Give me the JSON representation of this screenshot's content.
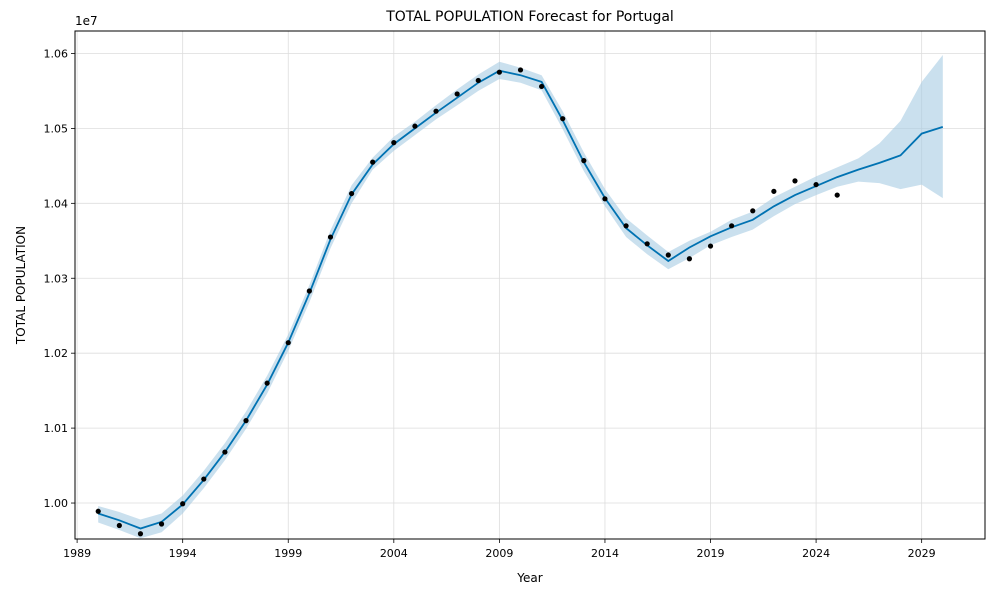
{
  "chart_data": {
    "type": "line",
    "title": "TOTAL POPULATION Forecast for Portugal",
    "xlabel": "Year",
    "ylabel": "TOTAL POPULATION",
    "y_offset_label": "1e7",
    "xlim": [
      1988.9,
      2032.0
    ],
    "ylim": [
      9952000,
      10630000
    ],
    "x_ticks": [
      1989,
      1994,
      1999,
      2004,
      2009,
      2014,
      2019,
      2024,
      2029
    ],
    "y_ticks": [
      10000000,
      10100000,
      10200000,
      10300000,
      10400000,
      10500000,
      10600000
    ],
    "y_tick_labels": [
      "1.00",
      "1.01",
      "1.02",
      "1.03",
      "1.04",
      "1.05",
      "1.06"
    ],
    "grid": true,
    "colors": {
      "forecast": "#0072B2",
      "interval": "#a6cbe3",
      "actual": "#000000"
    },
    "forecast": {
      "x": [
        1990,
        1991,
        1992,
        1993,
        1994,
        1995,
        1996,
        1997,
        1998,
        1999,
        2000,
        2001,
        2002,
        2003,
        2004,
        2005,
        2006,
        2007,
        2008,
        2009,
        2010,
        2011,
        2012,
        2013,
        2014,
        2015,
        2016,
        2017,
        2018,
        2019,
        2020,
        2021,
        2022,
        2023,
        2024,
        2025,
        2026,
        2027,
        2028,
        2029,
        2030
      ],
      "yhat": [
        9986000,
        9977000,
        9966000,
        9975000,
        9998000,
        10031000,
        10068000,
        10110000,
        10158000,
        10214000,
        10280000,
        10352000,
        10412000,
        10452000,
        10479000,
        10500000,
        10521000,
        10541000,
        10561000,
        10577000,
        10571000,
        10562000,
        10511000,
        10455000,
        10407000,
        10367000,
        10344000,
        10323000,
        10341000,
        10356000,
        10368000,
        10378000,
        10396000,
        10411000,
        10423000,
        10435000,
        10445000,
        10454000,
        10464000,
        10493000,
        10502000
      ],
      "lower": [
        9974000,
        9964000,
        9953000,
        9961000,
        9986000,
        10020000,
        10057000,
        10099000,
        10146000,
        10203000,
        10268000,
        10340000,
        10400000,
        10445000,
        10470000,
        10491000,
        10512000,
        10531000,
        10550000,
        10566000,
        10561000,
        10551000,
        10499000,
        10443000,
        10396000,
        10355000,
        10332000,
        10312000,
        10327000,
        10344000,
        10355000,
        10365000,
        10383000,
        10399000,
        10411000,
        10422000,
        10429000,
        10427000,
        10419000,
        10425000,
        10407000
      ],
      "upper": [
        9996000,
        9988000,
        9978000,
        9986000,
        10010000,
        10043000,
        10080000,
        10122000,
        10170000,
        10225000,
        10291000,
        10364000,
        10424000,
        10461000,
        10489000,
        10509000,
        10531000,
        10552000,
        10572000,
        10589000,
        10581000,
        10571000,
        10523000,
        10468000,
        10419000,
        10380000,
        10357000,
        10335000,
        10350000,
        10362000,
        10378000,
        10389000,
        10408000,
        10422000,
        10436000,
        10448000,
        10460000,
        10480000,
        10510000,
        10562000,
        10598000
      ]
    },
    "actual": {
      "x": [
        1990,
        1991,
        1992,
        1993,
        1994,
        1995,
        1996,
        1997,
        1998,
        1999,
        2000,
        2001,
        2002,
        2003,
        2004,
        2005,
        2006,
        2007,
        2008,
        2009,
        2010,
        2011,
        2012,
        2013,
        2014,
        2015,
        2016,
        2017,
        2018,
        2019,
        2020,
        2021,
        2022,
        2023,
        2024,
        2025
      ],
      "y": [
        9989000,
        9970000,
        9959000,
        9972000,
        9999000,
        10032000,
        10068000,
        10110000,
        10160000,
        10214000,
        10283000,
        10355000,
        10413000,
        10455000,
        10481000,
        10503000,
        10523000,
        10546000,
        10564000,
        10575000,
        10578000,
        10556000,
        10513000,
        10457000,
        10406000,
        10370000,
        10346000,
        10331000,
        10326000,
        10343000,
        10370000,
        10390000,
        10416000,
        10430000,
        10425000,
        10411000
      ]
    }
  }
}
